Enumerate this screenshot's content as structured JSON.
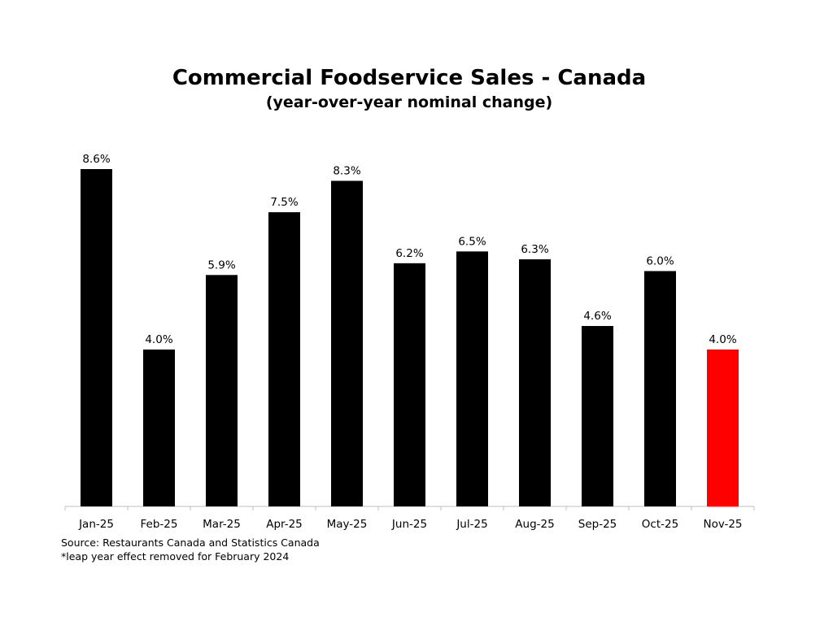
{
  "chart_data": {
    "type": "bar",
    "title": "Commercial Foodservice Sales - Canada",
    "subtitle": "(year-over-year nominal change)",
    "categories": [
      "Jan-25",
      "Feb-25",
      "Mar-25",
      "Apr-25",
      "May-25",
      "Jun-25",
      "Jul-25",
      "Aug-25",
      "Sep-25",
      "Oct-25",
      "Nov-25"
    ],
    "values": [
      8.6,
      4.0,
      5.9,
      7.5,
      8.3,
      6.2,
      6.5,
      6.3,
      4.6,
      6.0,
      4.0
    ],
    "value_labels": [
      "8.6%",
      "4.0%",
      "5.9%",
      "7.5%",
      "8.3%",
      "6.2%",
      "6.5%",
      "6.3%",
      "4.6%",
      "6.0%",
      "4.0%"
    ],
    "colors": [
      "#000000",
      "#000000",
      "#000000",
      "#000000",
      "#000000",
      "#000000",
      "#000000",
      "#000000",
      "#000000",
      "#000000",
      "#ff0000"
    ],
    "ylim": [
      0,
      8.6
    ],
    "xlabel": "",
    "ylabel": "",
    "grid": false,
    "legend": "none"
  },
  "footnotes": {
    "source": "Source: Restaurants Canada and  Statistics Canada",
    "note": "*leap year effect removed for February 2024"
  }
}
